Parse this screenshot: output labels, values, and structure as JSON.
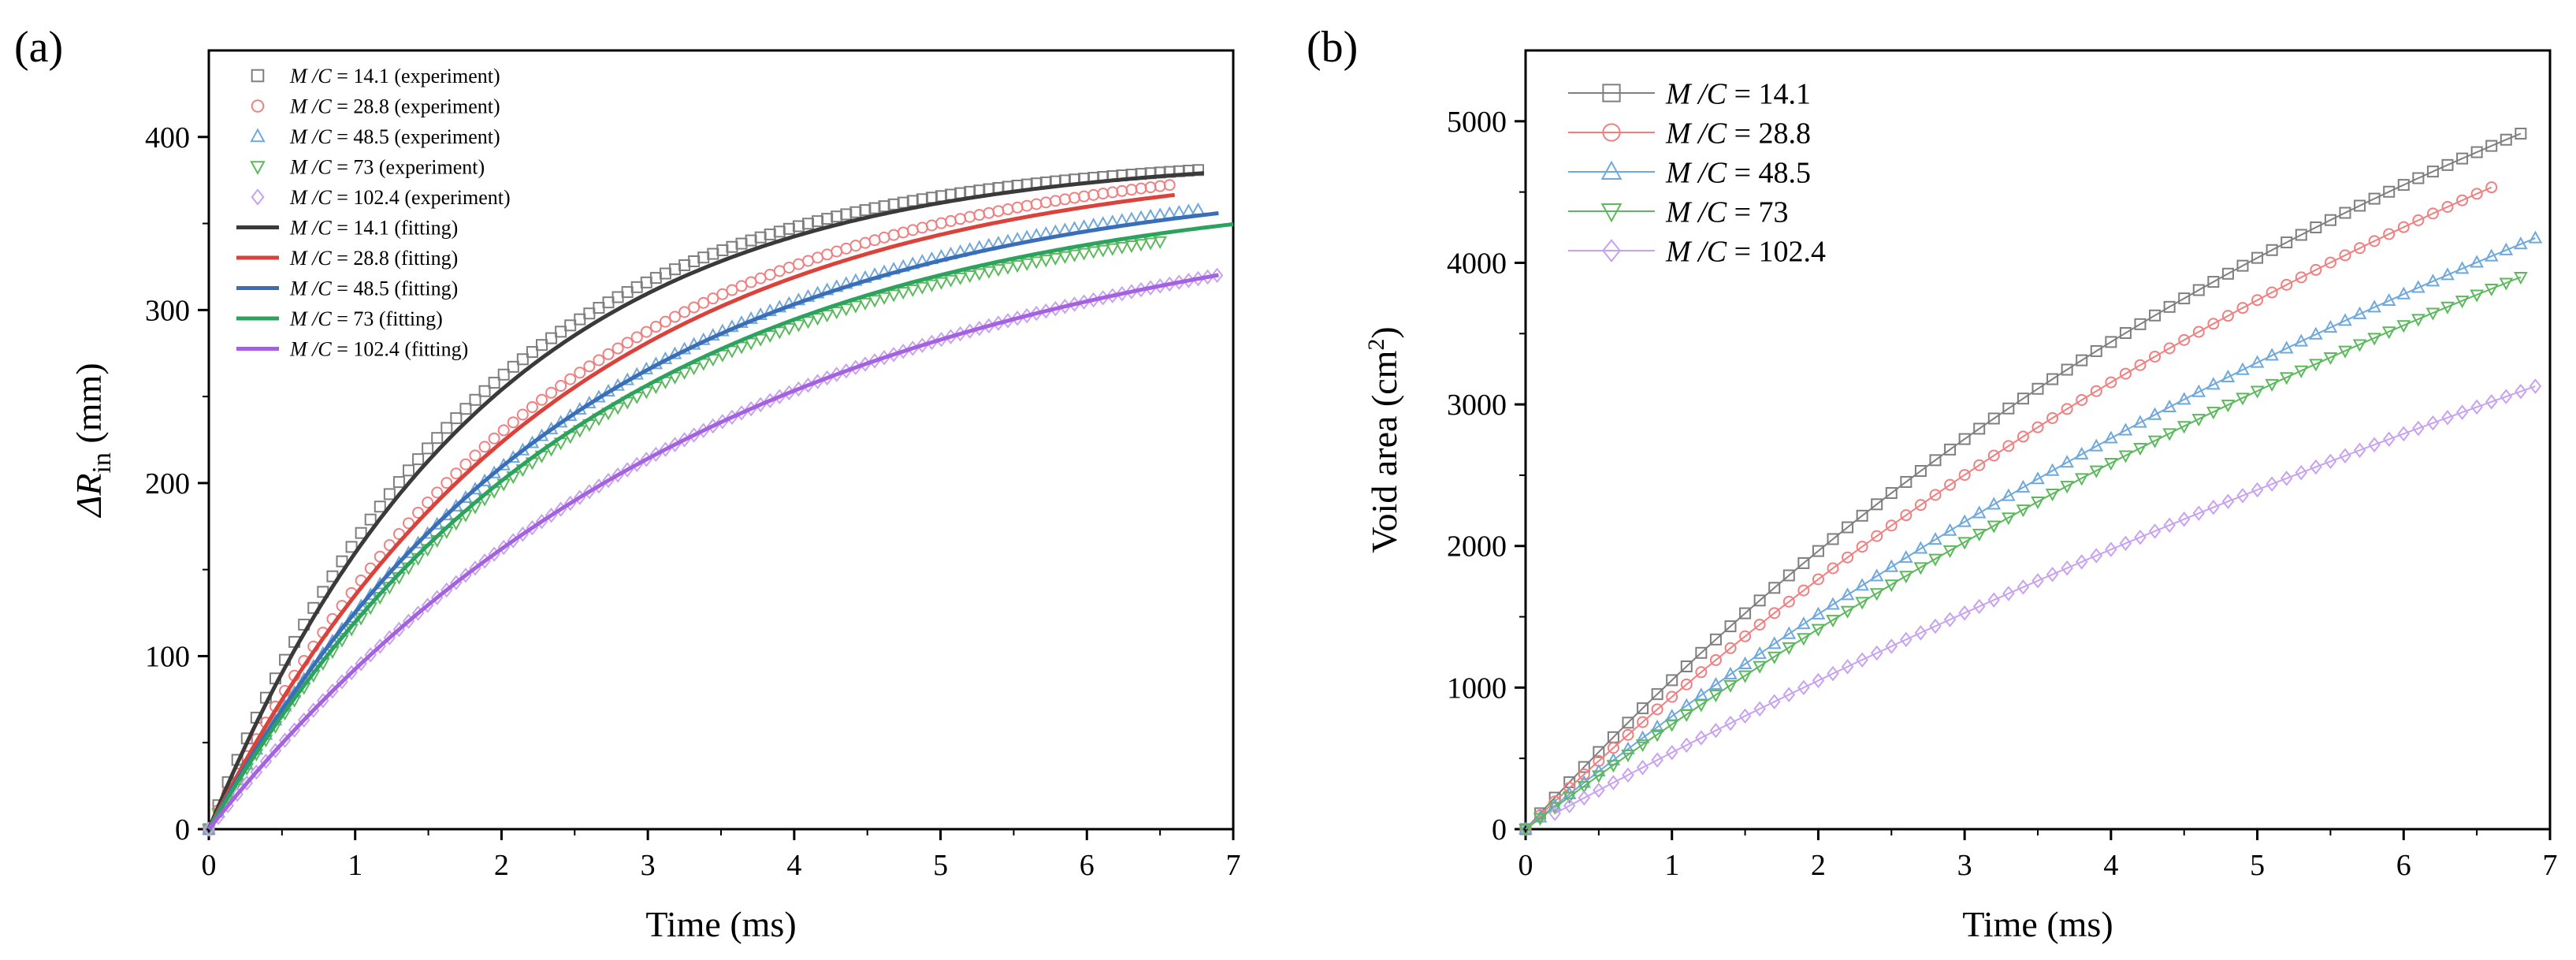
{
  "chart_data": [
    {
      "id": "a",
      "type": "scatter",
      "panel_label": "(a)",
      "xlabel": "Time (ms)",
      "ylabel_prefix": "ΔR",
      "ylabel_sub": "in",
      "ylabel_suffix": " (mm)",
      "xlim": [
        0,
        7
      ],
      "ylim": [
        0,
        450
      ],
      "xticks": [
        0,
        1,
        2,
        3,
        4,
        5,
        6,
        7
      ],
      "yticks": [
        0,
        100,
        200,
        300,
        400
      ],
      "legend_position": "top-left",
      "series": [
        {
          "key": "mc14",
          "label_mc": "M /C",
          "label_rest": " = 14.1 (experiment)",
          "kind": "experiment",
          "marker": "square",
          "color": "#7f7f7f",
          "x_start": 0,
          "x_step": 0.065,
          "x_end": 6.8,
          "model": {
            "A": 390,
            "tau": 1.8
          }
        },
        {
          "key": "mc28",
          "label_mc": "M /C",
          "label_rest": " = 28.8 (experiment)",
          "kind": "experiment",
          "marker": "circle",
          "color": "#f08080",
          "x_start": 0,
          "x_step": 0.065,
          "x_end": 6.6,
          "model": {
            "A": 395,
            "tau": 2.3
          }
        },
        {
          "key": "mc48",
          "label_mc": "M /C",
          "label_rest": " = 48.5 (experiment)",
          "kind": "experiment",
          "marker": "triangle-up",
          "color": "#6fa8dc",
          "x_start": 0,
          "x_step": 0.065,
          "x_end": 6.8,
          "model": {
            "A": 385,
            "tau": 2.55
          }
        },
        {
          "key": "mc73",
          "label_mc": "M /C",
          "label_rest": " = 73 (experiment)",
          "kind": "experiment",
          "marker": "triangle-down",
          "color": "#5cb85c",
          "x_start": 0,
          "x_step": 0.065,
          "x_end": 6.5,
          "model": {
            "A": 370,
            "tau": 2.6
          }
        },
        {
          "key": "mc102",
          "label_mc": "M /C",
          "label_rest": " = 102.4 (experiment)",
          "kind": "experiment",
          "marker": "diamond",
          "color": "#c8a2f0",
          "x_start": 0,
          "x_step": 0.065,
          "x_end": 6.9,
          "model": {
            "A": 372,
            "tau": 3.5
          }
        },
        {
          "key": "fit14",
          "label_mc": "M /C",
          "label_rest": " = 14.1 (fitting)",
          "kind": "fitting",
          "color": "#3a3a3a",
          "x_start": 0,
          "x_end": 6.8,
          "model": {
            "A": 390,
            "tau": 1.9
          }
        },
        {
          "key": "fit28",
          "label_mc": "M /C",
          "label_rest": " = 28.8 (fitting)",
          "kind": "fitting",
          "color": "#d9433b",
          "x_start": 0,
          "x_end": 6.6,
          "model": {
            "A": 390,
            "tau": 2.35
          }
        },
        {
          "key": "fit48",
          "label_mc": "M /C",
          "label_rest": " = 48.5 (fitting)",
          "kind": "fitting",
          "color": "#3a6fb7",
          "x_start": 0,
          "x_end": 6.9,
          "model": {
            "A": 380,
            "tau": 2.5
          }
        },
        {
          "key": "fit73",
          "label_mc": "M /C",
          "label_rest": " = 73 (fitting)",
          "kind": "fitting",
          "color": "#2ca25f",
          "x_start": 0,
          "x_end": 7.0,
          "model": {
            "A": 375,
            "tau": 2.6
          }
        },
        {
          "key": "fit102",
          "label_mc": "M /C",
          "label_rest": " = 102.4 (fitting)",
          "kind": "fitting",
          "color": "#a461e0",
          "x_start": 0,
          "x_end": 6.9,
          "model": {
            "A": 372,
            "tau": 3.5
          }
        }
      ]
    },
    {
      "id": "b",
      "type": "line",
      "panel_label": "(b)",
      "xlabel": "Time (ms)",
      "ylabel_prefix": "Void area (cm",
      "ylabel_sup": "2",
      "ylabel_suffix": ")",
      "xlim": [
        0,
        7
      ],
      "ylim": [
        0,
        5500
      ],
      "xticks": [
        0,
        1,
        2,
        3,
        4,
        5,
        6,
        7
      ],
      "yticks": [
        0,
        1000,
        2000,
        3000,
        4000,
        5000
      ],
      "legend_position": "top-left",
      "series": [
        {
          "key": "b14",
          "label_mc": "M /C",
          "label_rest": " = 14.1",
          "marker": "square",
          "color": "#7f7f7f",
          "x_start": 0,
          "x_step": 0.1,
          "x_end": 6.8,
          "model": {
            "A": 7905,
            "tau": 7.0
          }
        },
        {
          "key": "b28",
          "label_mc": "M /C",
          "label_rest": " = 28.8",
          "marker": "circle",
          "color": "#f08080",
          "x_start": 0,
          "x_step": 0.1,
          "x_end": 6.6,
          "model": {
            "A": 8330,
            "tau": 8.4
          }
        },
        {
          "key": "b48",
          "label_mc": "M /C",
          "label_rest": " = 48.5",
          "marker": "triangle-up",
          "color": "#6fa8dc",
          "x_start": 0,
          "x_step": 0.1,
          "x_end": 6.9,
          "model": {
            "A": 8375,
            "tau": 10.0
          }
        },
        {
          "key": "b73",
          "label_mc": "M /C",
          "label_rest": " = 73",
          "marker": "triangle-down",
          "color": "#5cb85c",
          "x_start": 0,
          "x_step": 0.1,
          "x_end": 6.8,
          "model": {
            "A": 8290,
            "tau": 10.7
          }
        },
        {
          "key": "b102",
          "label_mc": "M /C",
          "label_rest": " = 102.4",
          "marker": "diamond",
          "color": "#c8a2f0",
          "x_start": 0.2,
          "x_step": 0.1,
          "x_end": 6.9,
          "model": {
            "A": 8930,
            "tau": 16.0
          }
        }
      ]
    }
  ]
}
